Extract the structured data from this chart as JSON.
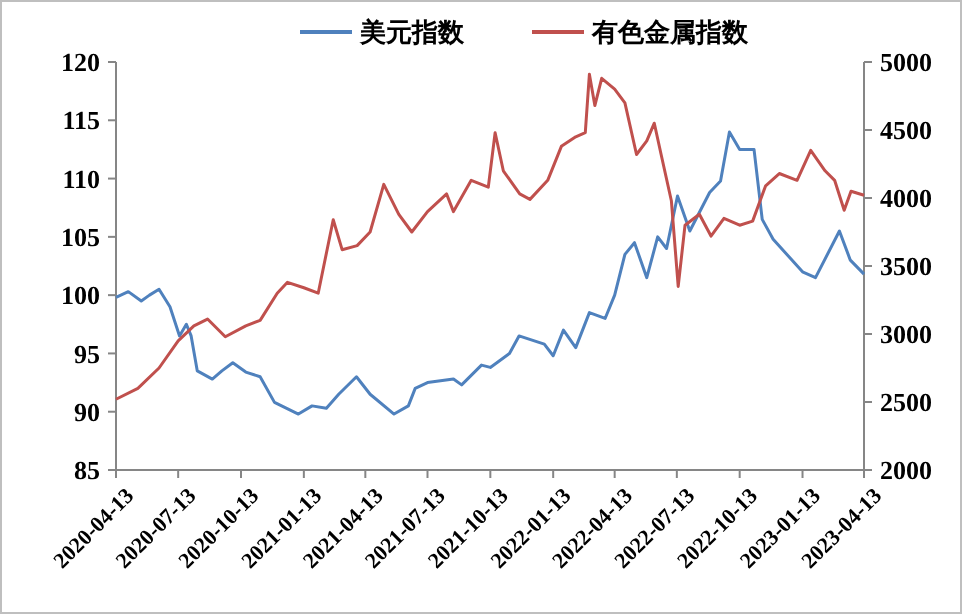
{
  "chart_data": {
    "type": "line",
    "legend": "top",
    "grid": false,
    "xlim": [
      "2020-04-13",
      "2023-04-13"
    ],
    "xticks": [
      "2020-04-13",
      "2020-07-13",
      "2020-10-13",
      "2021-01-13",
      "2021-04-13",
      "2021-07-13",
      "2021-10-13",
      "2022-01-13",
      "2022-04-13",
      "2022-07-13",
      "2022-10-13",
      "2023-01-13",
      "2023-04-13"
    ],
    "ylim": [
      85,
      120
    ],
    "yticks": [
      85,
      90,
      95,
      100,
      105,
      110,
      115,
      120
    ],
    "y2lim": [
      2000,
      5000
    ],
    "y2ticks": [
      2000,
      2500,
      3000,
      3500,
      4000,
      4500,
      5000
    ],
    "series": [
      {
        "name": "美元指数",
        "color": "#4f81bd",
        "axis": "y",
        "x": [
          "2020-04-13",
          "2020-05-01",
          "2020-05-20",
          "2020-06-01",
          "2020-06-15",
          "2020-07-01",
          "2020-07-15",
          "2020-07-25",
          "2020-08-01",
          "2020-08-10",
          "2020-09-01",
          "2020-09-15",
          "2020-10-01",
          "2020-10-20",
          "2020-11-10",
          "2020-12-01",
          "2021-01-05",
          "2021-01-25",
          "2021-02-15",
          "2021-03-05",
          "2021-03-31",
          "2021-04-20",
          "2021-05-25",
          "2021-06-15",
          "2021-06-25",
          "2021-07-13",
          "2021-08-20",
          "2021-09-01",
          "2021-09-30",
          "2021-10-13",
          "2021-11-10",
          "2021-11-24",
          "2021-12-31",
          "2022-01-13",
          "2022-01-28",
          "2022-02-15",
          "2022-03-07",
          "2022-03-30",
          "2022-04-13",
          "2022-04-28",
          "2022-05-12",
          "2022-05-30",
          "2022-06-15",
          "2022-06-28",
          "2022-07-14",
          "2022-08-01",
          "2022-08-30",
          "2022-09-15",
          "2022-09-28",
          "2022-10-13",
          "2022-11-03",
          "2022-11-15",
          "2022-12-01",
          "2023-01-13",
          "2023-02-01",
          "2023-03-08",
          "2023-03-24",
          "2023-04-13"
        ],
        "values": [
          99.8,
          100.3,
          99.5,
          100,
          100.5,
          99,
          96.5,
          97.5,
          96.5,
          93.5,
          92.8,
          93.5,
          94.2,
          93.4,
          93,
          90.8,
          89.8,
          90.5,
          90.3,
          91.5,
          93,
          91.5,
          89.8,
          90.5,
          92,
          92.5,
          92.8,
          92.3,
          94,
          93.8,
          95,
          96.5,
          95.8,
          94.8,
          97,
          95.5,
          98.5,
          98,
          100,
          103.5,
          104.5,
          101.5,
          105,
          104,
          108.5,
          105.5,
          108.8,
          109.8,
          114,
          112.5,
          112.5,
          106.5,
          104.8,
          102,
          101.5,
          105.5,
          103,
          101.8
        ]
      },
      {
        "name": "有色金属指数",
        "color": "#c0504d",
        "axis": "y2",
        "x": [
          "2020-04-13",
          "2020-05-15",
          "2020-06-15",
          "2020-07-13",
          "2020-08-05",
          "2020-08-25",
          "2020-09-20",
          "2020-10-20",
          "2020-11-10",
          "2020-12-05",
          "2020-12-20",
          "2021-01-13",
          "2021-02-03",
          "2021-02-25",
          "2021-03-10",
          "2021-04-01",
          "2021-04-20",
          "2021-05-10",
          "2021-06-01",
          "2021-06-20",
          "2021-07-13",
          "2021-08-10",
          "2021-08-20",
          "2021-09-15",
          "2021-10-10",
          "2021-10-20",
          "2021-11-01",
          "2021-11-25",
          "2021-12-10",
          "2022-01-05",
          "2022-01-25",
          "2022-02-15",
          "2022-03-01",
          "2022-03-07",
          "2022-03-15",
          "2022-03-25",
          "2022-04-13",
          "2022-04-28",
          "2022-05-15",
          "2022-05-30",
          "2022-06-10",
          "2022-06-20",
          "2022-07-05",
          "2022-07-15",
          "2022-07-25",
          "2022-08-15",
          "2022-09-01",
          "2022-09-20",
          "2022-10-13",
          "2022-11-01",
          "2022-11-20",
          "2022-12-10",
          "2023-01-05",
          "2023-01-25",
          "2023-02-15",
          "2023-03-01",
          "2023-03-15",
          "2023-03-25",
          "2023-04-13"
        ],
        "values": [
          2520,
          2600,
          2750,
          2950,
          3060,
          3110,
          2980,
          3060,
          3100,
          3300,
          3380,
          3340,
          3300,
          3840,
          3620,
          3650,
          3750,
          4100,
          3880,
          3750,
          3900,
          4030,
          3900,
          4130,
          4080,
          4480,
          4200,
          4030,
          3990,
          4130,
          4380,
          4450,
          4480,
          4910,
          4680,
          4880,
          4800,
          4700,
          4320,
          4420,
          4550,
          4320,
          3980,
          3350,
          3800,
          3880,
          3720,
          3850,
          3800,
          3830,
          4090,
          4180,
          4130,
          4350,
          4200,
          4130,
          3910,
          4050,
          4020
        ]
      }
    ]
  }
}
